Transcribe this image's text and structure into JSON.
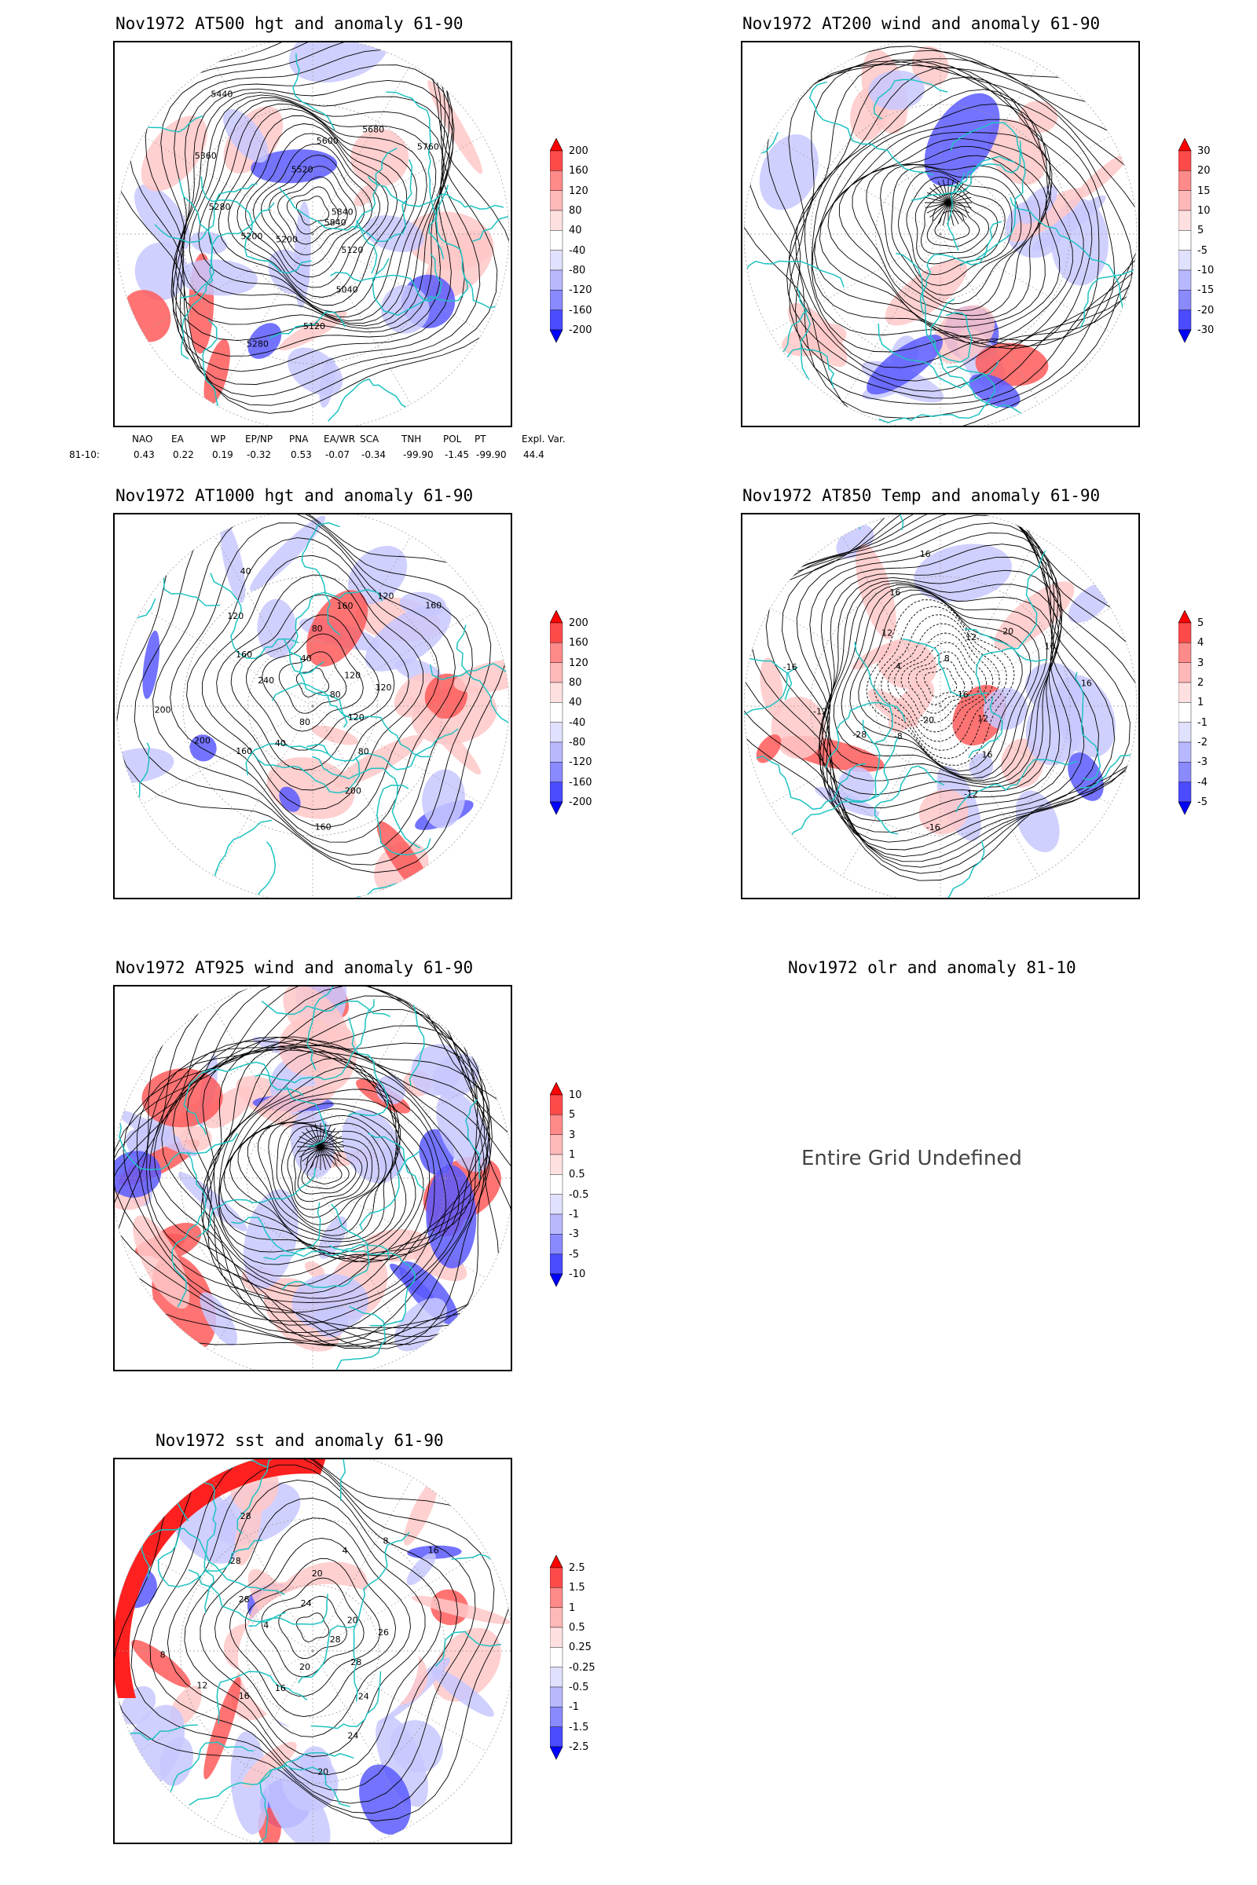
{
  "colors": {
    "coast": "#1fc2c2",
    "contour": "#000000",
    "pos_strong": "#ff0000",
    "pos_light": "#ffc8c8",
    "neg_light": "#c8c8ff",
    "neg_strong": "#0000ff",
    "grid": "#9a9a9a"
  },
  "panels": [
    {
      "title": "Nov1972 AT500 hgt and anomaly 61-90",
      "colorbar": [
        "200",
        "160",
        "120",
        "80",
        "40",
        "-40",
        "-80",
        "-120",
        "-160",
        "-200"
      ],
      "contour_labels": [
        "5840",
        "5120",
        "5040",
        "5120",
        "5280",
        "5200",
        "5200",
        "5280",
        "5360",
        "5440",
        "5520",
        "5600",
        "5680",
        "5760",
        "5840"
      ],
      "style": "hgt"
    },
    {
      "title": "Nov1972 AT200 wind and anomaly 61-90",
      "colorbar": [
        "30",
        "20",
        "15",
        "10",
        "5",
        "-5",
        "-10",
        "-15",
        "-20",
        "-30"
      ],
      "contour_labels": [],
      "style": "wind"
    },
    {
      "title": "Nov1972 AT1000 hgt and anomaly 61-90",
      "colorbar": [
        "200",
        "160",
        "120",
        "80",
        "40",
        "-40",
        "-80",
        "-120",
        "-160",
        "-200"
      ],
      "contour_labels": [
        "80",
        "120",
        "80",
        "200",
        "160",
        "80",
        "40",
        "160",
        "200",
        "200",
        "240",
        "160",
        "120",
        "40",
        "40",
        "80",
        "160",
        "120",
        "160",
        "120",
        "120"
      ],
      "style": "hgt1000"
    },
    {
      "title": "Nov1972 AT850 Temp and anomaly 61-90",
      "colorbar": [
        "5",
        "4",
        "3",
        "2",
        "1",
        "-1",
        "-2",
        "-3",
        "-4",
        "-5"
      ],
      "contour_labels": [
        "16",
        "12",
        "16",
        "-12",
        "-16",
        "-20",
        "-8",
        "-28",
        "-12",
        "-16",
        "4",
        "12",
        "16",
        "16",
        "8",
        "12",
        "20",
        "16",
        "16"
      ],
      "style": "temp"
    },
    {
      "title": "Nov1972 AT925 wind and anomaly 61-90",
      "colorbar": [
        "10",
        "5",
        "3",
        "1",
        "0.5",
        "-0.5",
        "-1",
        "-3",
        "-5",
        "-10"
      ],
      "contour_labels": [],
      "style": "wind925"
    },
    {
      "title": "Nov1972 olr and anomaly 81-10",
      "undefined_text": "Entire Grid Undefined",
      "style": "undef"
    },
    {
      "title": "Nov1972 sst and anomaly 61-90",
      "colorbar": [
        "2.5",
        "1.5",
        "1",
        "0.5",
        "0.25",
        "-0.25",
        "-0.5",
        "-1",
        "-1.5",
        "-2.5"
      ],
      "contour_labels": [
        "28",
        "28",
        "24",
        "24",
        "20",
        "20",
        "16",
        "16",
        "12",
        "8",
        "4",
        "28",
        "28",
        "28",
        "24",
        "20",
        "4",
        "8",
        "16",
        "20",
        "26"
      ],
      "style": "sst"
    }
  ],
  "indices": {
    "headers": [
      "NAO",
      "EA",
      "WP",
      "EP/NP",
      "PNA",
      "EA/WR",
      "SCA",
      "TNH",
      "POL",
      "PT",
      "Expl. Var."
    ],
    "row_label": "81-10:",
    "values": [
      "0.43",
      "0.22",
      "0.19",
      "-0.32",
      "0.53",
      "-0.07",
      "-0.34",
      "-99.90",
      "-1.45",
      "-99.90",
      "44.4"
    ]
  }
}
